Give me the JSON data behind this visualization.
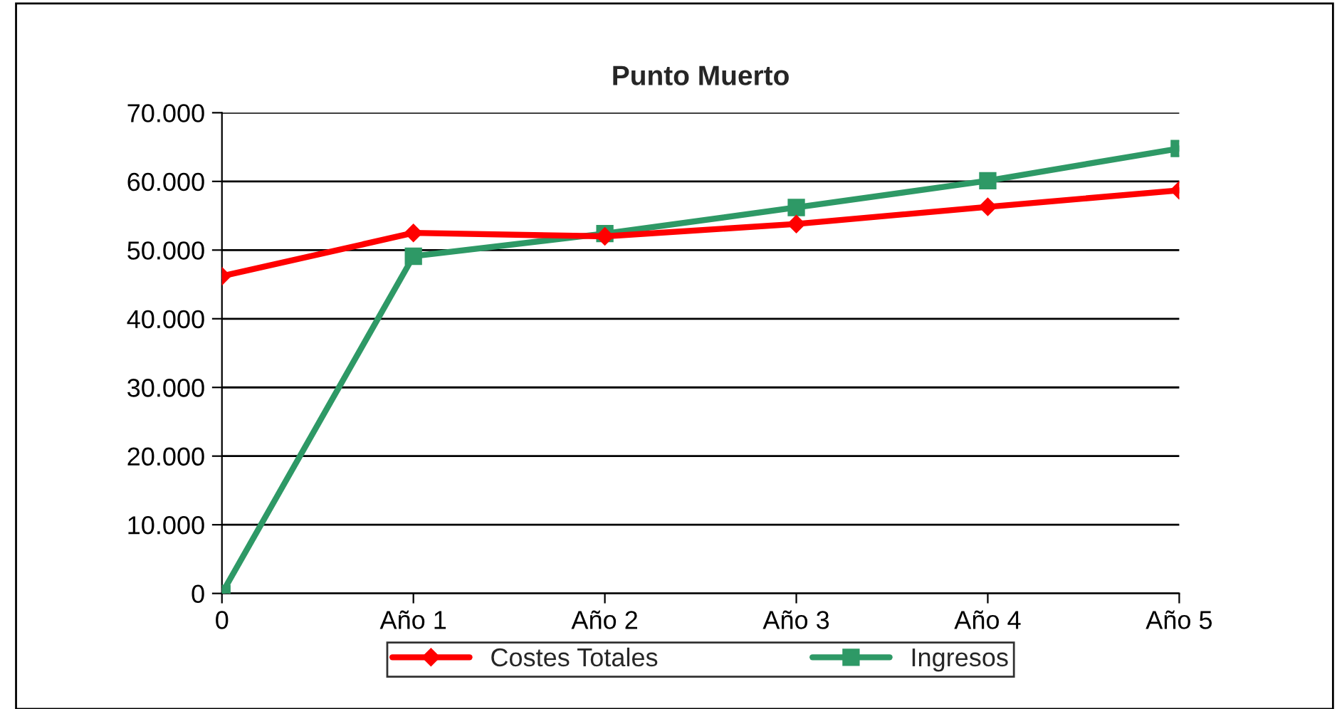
{
  "chart_data": {
    "type": "line",
    "title": "Punto Muerto",
    "categories": [
      "0",
      "Año 1",
      "Año 2",
      "Año 3",
      "Año 4",
      "Año 5"
    ],
    "series": [
      {
        "name": "Costes Totales",
        "color": "#ff0000",
        "marker": "diamond",
        "values": [
          46200,
          52500,
          52000,
          53800,
          56300,
          58700
        ]
      },
      {
        "name": "Ingresos",
        "color": "#2e9966",
        "marker": "square",
        "values": [
          0,
          49100,
          52400,
          56200,
          60100,
          64800
        ]
      }
    ],
    "ylim": [
      0,
      70000
    ],
    "yticks": [
      0,
      {
        "value": 10000,
        "label": "10.000"
      },
      {
        "value": 20000,
        "label": "20.000"
      },
      {
        "value": 30000,
        "label": "30.000"
      },
      {
        "value": 40000,
        "label": "40.000"
      },
      {
        "value": 50000,
        "label": "50.000"
      },
      {
        "value": 60000,
        "label": "60.000"
      },
      {
        "value": 70000,
        "label": "70.000"
      }
    ],
    "grid": "y",
    "legend": "bottom",
    "line_style": "solid"
  }
}
